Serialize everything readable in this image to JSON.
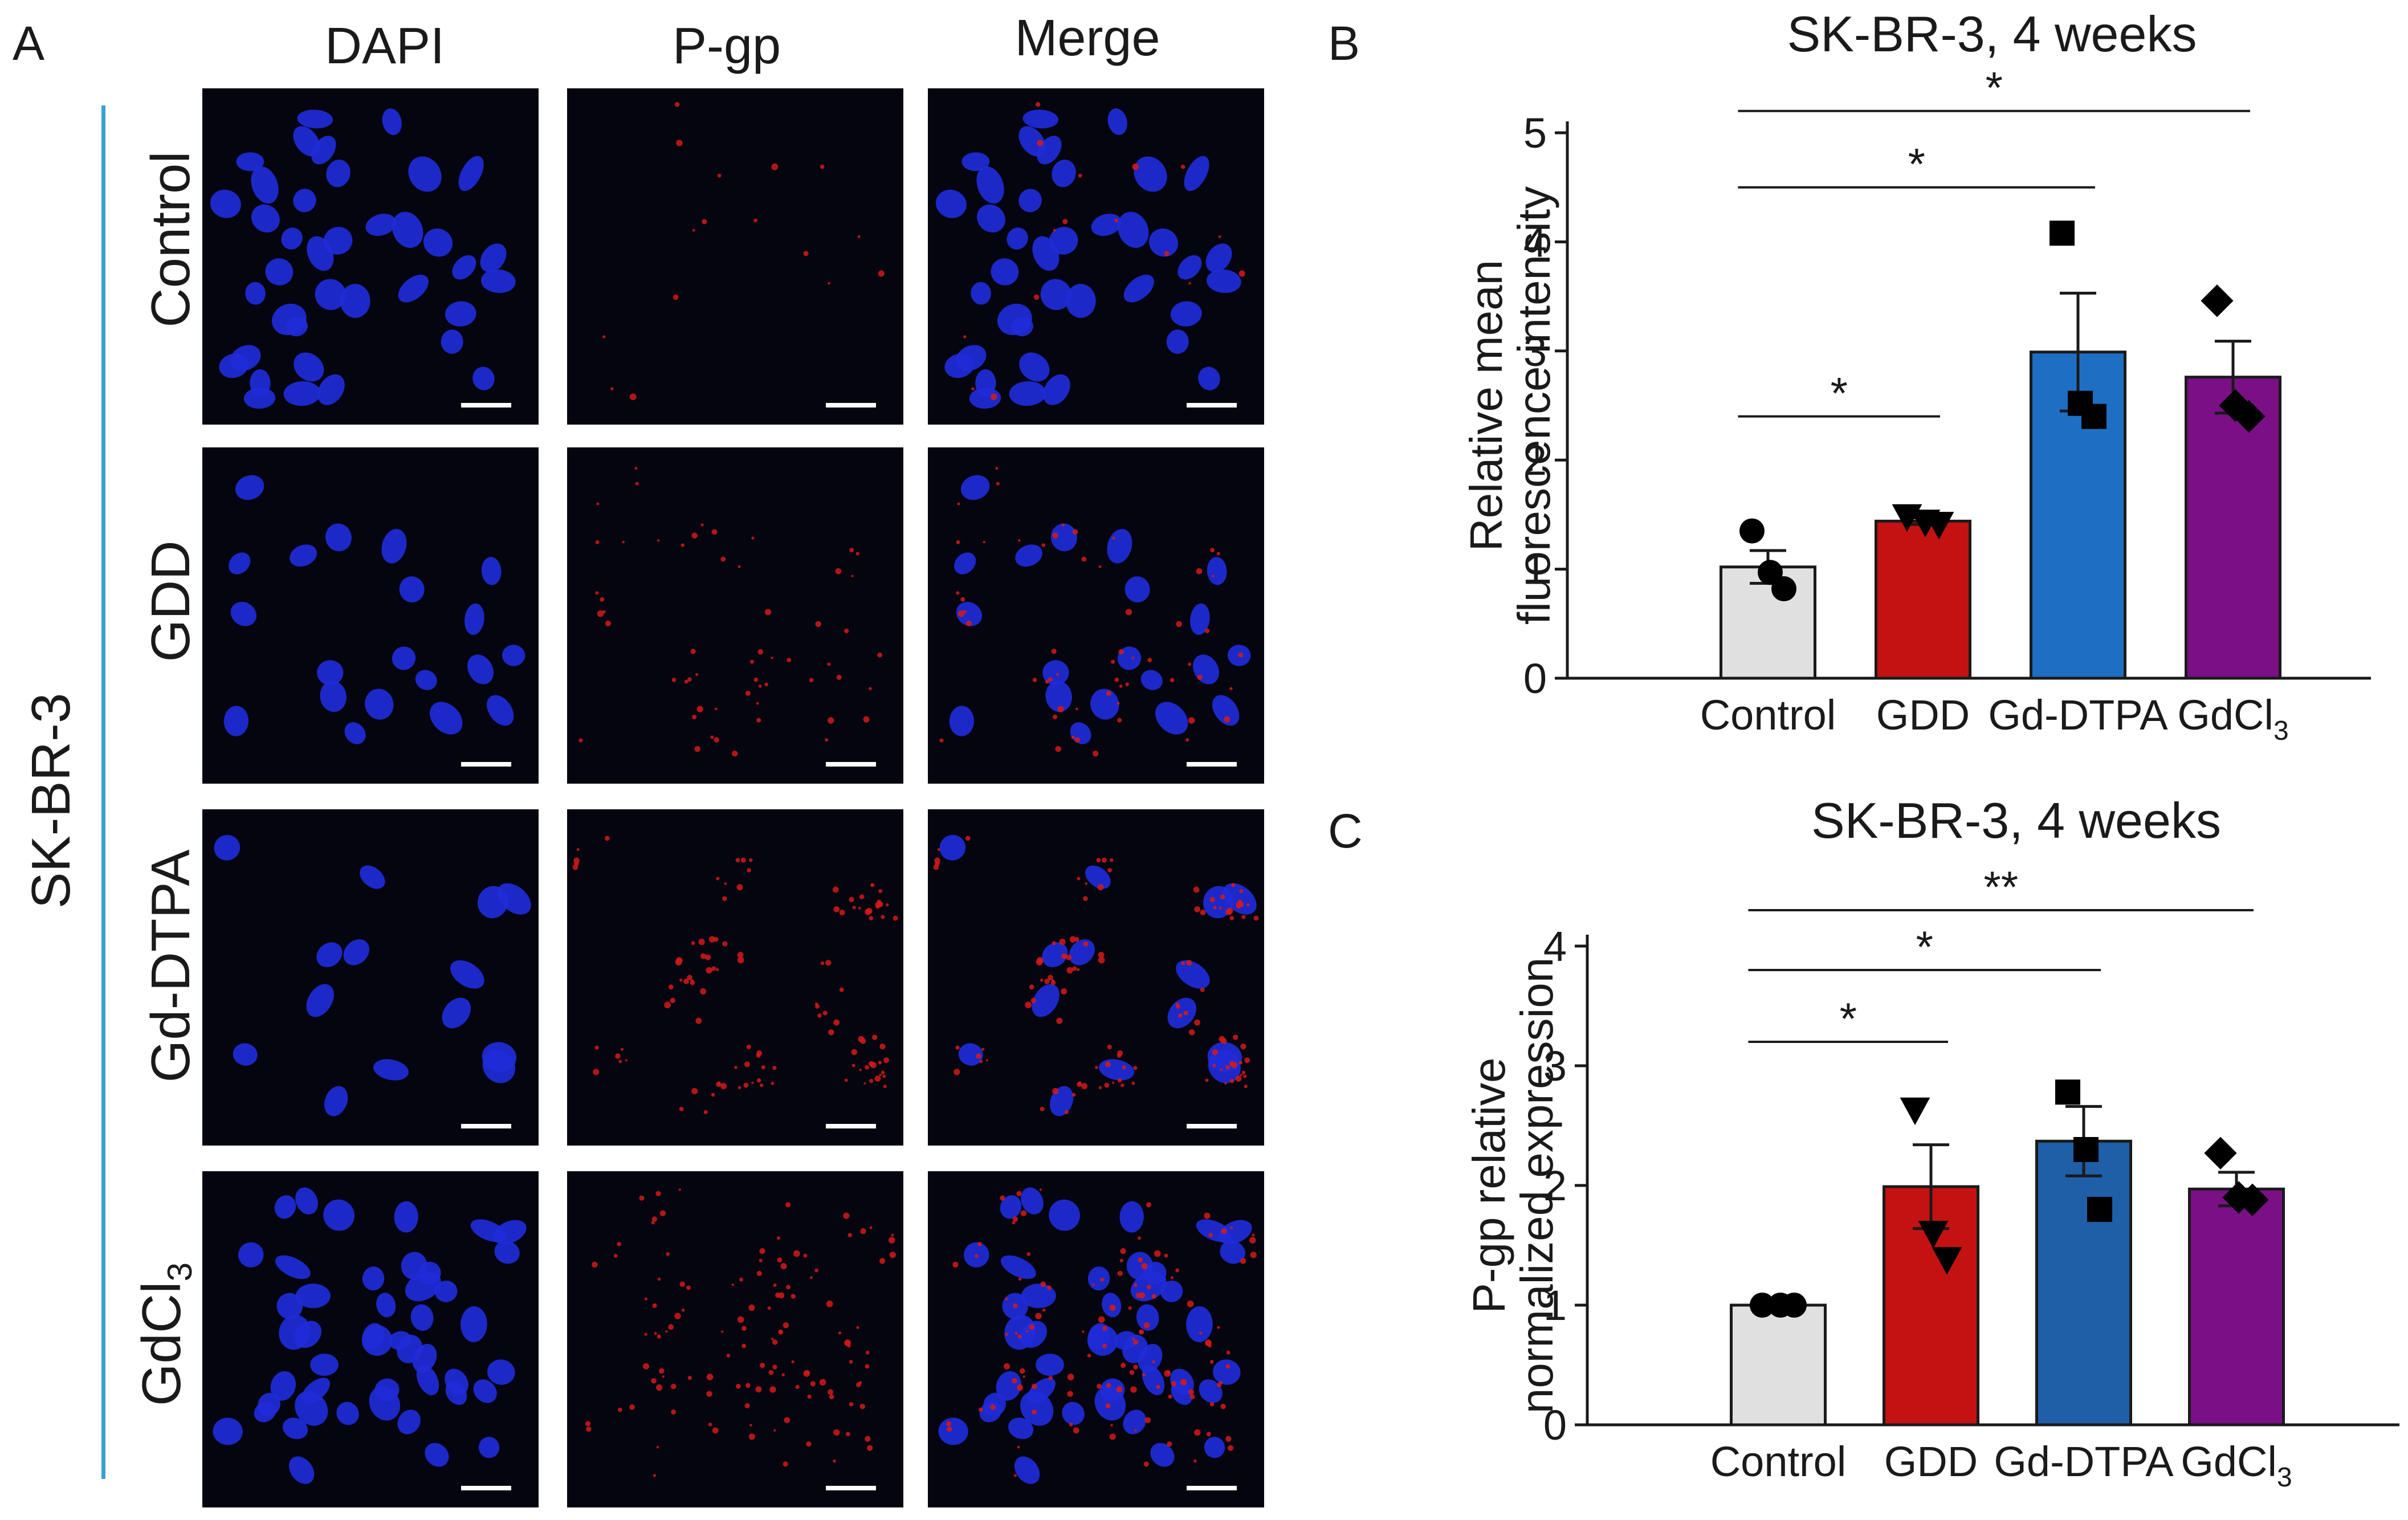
{
  "figure": {
    "panel_labels": [
      "A",
      "B",
      "C"
    ],
    "microscopy": {
      "columns": [
        "DAPI",
        "P-gp",
        "Merge"
      ],
      "rows": [
        {
          "main": "Control",
          "sub": ""
        },
        {
          "main": "GDD",
          "sub": ""
        },
        {
          "main": "Gd-DTPA",
          "sub": ""
        },
        {
          "main": "GdCl",
          "sub": "3"
        }
      ],
      "group_label": "SK-BR-3",
      "accent_color": "#3a9fd8",
      "nucleus_color": "#1f2bd8",
      "pgp_color": "#d41a1a",
      "background_color": "#05050f",
      "pgp_intensity": [
        0.1,
        0.35,
        0.7,
        0.75
      ]
    }
  },
  "chart_data": [
    {
      "type": "bar",
      "panel": "B",
      "title": "SK-BR-3, 4 weeks",
      "ylabel_lines": [
        "Relative mean",
        "fluorescence intensity"
      ],
      "xlabel": "",
      "categories": [
        {
          "main": "Control",
          "sub": ""
        },
        {
          "main": "GDD",
          "sub": ""
        },
        {
          "main": "Gd-DTPA",
          "sub": ""
        },
        {
          "main": "GdCl",
          "sub": "3"
        }
      ],
      "values": [
        1.02,
        1.44,
        2.99,
        2.76
      ],
      "sem": [
        0.15,
        0.03,
        0.54,
        0.33
      ],
      "points": [
        [
          1.35,
          0.97,
          0.82
        ],
        [
          1.48,
          1.43,
          1.41
        ],
        [
          4.08,
          2.52,
          2.4
        ],
        [
          3.46,
          2.5,
          2.4
        ]
      ],
      "colors": [
        "#e0e0e0",
        "#c41212",
        "#1e6fc4",
        "#7a0f86"
      ],
      "markers": [
        "circle",
        "triangle-down",
        "square",
        "diamond"
      ],
      "ylim": [
        0,
        5
      ],
      "yticks": [
        0,
        1,
        2,
        3,
        4,
        5
      ],
      "significance": [
        {
          "from": 0,
          "to": 1,
          "label": "*",
          "level": 2.4
        },
        {
          "from": 0,
          "to": 2,
          "label": "*",
          "level": 4.5
        },
        {
          "from": 0,
          "to": 3,
          "label": "*",
          "level": 5.2
        }
      ]
    },
    {
      "type": "bar",
      "panel": "C",
      "title": "SK-BR-3, 4 weeks",
      "ylabel_lines": [
        "P-gp relative",
        "normalized expression"
      ],
      "xlabel": "",
      "categories": [
        {
          "main": "Control",
          "sub": ""
        },
        {
          "main": "GDD",
          "sub": ""
        },
        {
          "main": "Gd-DTPA",
          "sub": ""
        },
        {
          "main": "GdCl",
          "sub": "3"
        }
      ],
      "values": [
        1.0,
        1.99,
        2.37,
        1.97
      ],
      "sem": [
        0.01,
        0.35,
        0.29,
        0.14
      ],
      "points": [
        [
          1.0,
          1.0,
          1.0
        ],
        [
          2.63,
          1.6,
          1.38
        ],
        [
          2.78,
          2.3,
          1.8
        ],
        [
          2.27,
          1.9,
          1.88
        ]
      ],
      "colors": [
        "#e0e0e0",
        "#c41212",
        "#1e5fa8",
        "#7a0f86"
      ],
      "markers": [
        "circle",
        "triangle-down",
        "square",
        "diamond"
      ],
      "ylim": [
        0,
        4
      ],
      "yticks": [
        0,
        1,
        2,
        3,
        4
      ],
      "significance": [
        {
          "from": 0,
          "to": 1,
          "label": "*",
          "level": 3.2
        },
        {
          "from": 0,
          "to": 2,
          "label": "*",
          "level": 3.8
        },
        {
          "from": 0,
          "to": 3,
          "label": "**",
          "level": 4.3
        }
      ]
    }
  ]
}
